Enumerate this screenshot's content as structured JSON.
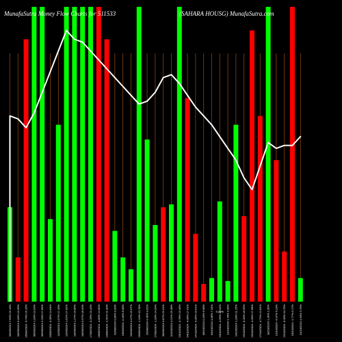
{
  "header": {
    "title": "MunafaSutra  Money Flow  Charts for 511533",
    "subtitle": "(SAHARA HOUSG) MunafaSutra.com"
  },
  "chart_data": {
    "type": "bar",
    "title": "MunafaSutra  Money Flow  Charts for 511533",
    "subtitle": "(SAHARA HOUSG) MunafaSutra.com",
    "xlabel": "",
    "ylabel": "",
    "grid": true,
    "ylim": [
      0,
      100
    ],
    "colors": {
      "background": "#000000",
      "up": "#00ff00",
      "down": "#ff0000",
      "grid": "#8B4513",
      "line": "#ffffff",
      "text": "#ffffff"
    },
    "categories": [
      "03/09/2024 7.99% 16.16%",
      "04/09/2024 5.46% 13.35%",
      "05/09/2024 -4.74% 16.16%",
      "06/09/2024 1.33% 13.63%",
      "09/09/2024 2.25% 17.89%",
      "10/09/2024 -0.35% 14.04%",
      "11/09/2024 1.57% 17.43%",
      "12/09/2024 1.61% 17.81%",
      "13/09/2024 1.17% 16.86%",
      "16/09/2024 0.67% 18.00%",
      "17/09/2024 -0.03% 23.43%",
      "18/09/2024 -4.80% 12.80%",
      "19/09/2024 -2.61% 21.00%",
      "20/09/2024 0.80% 9.00%",
      "23/09/2024 -0.40% 8.68%",
      "24/09/2024 4.17% 15.67%",
      "25/09/2024 -1.13% 10.78%",
      "26/09/2024 4.45% 9.62%",
      "27/09/2024 -1.93% 14.93%",
      "30/09/2024 0.87% 19.01%",
      "01/10/2024 4.21% 25.38%",
      "03/10/2024 -4.78% 23.49%",
      "04/10/2024 -4.99% 17.61%",
      "07/10/2024 -4.95% 23.51%",
      "08/10/2024 0.43% 6.98%",
      "09/10/2024 4.88% 7.34%",
      "10/10/2024 -4.99% 24.34%",
      "11/10/2024 1.78% 3.39%",
      "14/10/2024 1.18% 21.25%",
      "15/10/2024 -5.00% 18.56%",
      "16/10/2024 -4.96% 17.68%",
      "17/10/2024 -4.72% 12.81%",
      "18/10/2024 1.39% 2.36%",
      "21/10/2024 -4.97% 6.23%",
      "22/10/2024 -5.00% 10.75%",
      "23/10/2024 -1.77% 0.17%",
      "24/10/2024 1.63% 3.76%"
    ],
    "x_tick_note": "0.20%",
    "series": [
      {
        "kind": "bar",
        "values": [
          32,
          15,
          89,
          100,
          100,
          28,
          60,
          100,
          100,
          100,
          100,
          100,
          89,
          24,
          15,
          11,
          100,
          55,
          26,
          32,
          33,
          100,
          69,
          23,
          6,
          8,
          34,
          7,
          60,
          29,
          92,
          63,
          100,
          48,
          17,
          100,
          8
        ],
        "directions": [
          "up",
          "down",
          "down",
          "up",
          "up",
          "up",
          "up",
          "up",
          "up",
          "up",
          "up",
          "down",
          "down",
          "up",
          "up",
          "up",
          "up",
          "up",
          "up",
          "down",
          "up",
          "up",
          "down",
          "down",
          "down",
          "up",
          "up",
          "up",
          "up",
          "down",
          "down",
          "down",
          "up",
          "down",
          "down",
          "down",
          "up"
        ]
      },
      {
        "kind": "line",
        "values": [
          63,
          62,
          59,
          64,
          71,
          78,
          85,
          92,
          89,
          88,
          85,
          82,
          79,
          76,
          73,
          70,
          67,
          68,
          71,
          76,
          77,
          74,
          70,
          66,
          63,
          60,
          56,
          52,
          48,
          42,
          38,
          46,
          54,
          52,
          53,
          53,
          56
        ]
      }
    ]
  }
}
